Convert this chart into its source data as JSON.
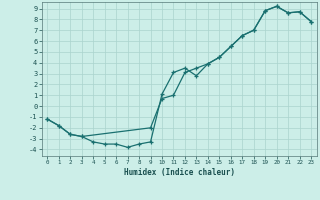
{
  "xlabel": "Humidex (Indice chaleur)",
  "background_color": "#cceee8",
  "grid_color": "#aad4ce",
  "line_color": "#1a7070",
  "xlim": [
    -0.5,
    23.5
  ],
  "ylim": [
    -4.6,
    9.6
  ],
  "xticks": [
    0,
    1,
    2,
    3,
    4,
    5,
    6,
    7,
    8,
    9,
    10,
    11,
    12,
    13,
    14,
    15,
    16,
    17,
    18,
    19,
    20,
    21,
    22,
    23
  ],
  "yticks": [
    -4,
    -3,
    -2,
    -1,
    0,
    1,
    2,
    3,
    4,
    5,
    6,
    7,
    8,
    9
  ],
  "curve1_x": [
    0,
    1,
    2,
    3,
    4,
    5,
    6,
    7,
    8,
    9,
    10,
    11,
    12,
    13,
    14,
    15,
    16,
    17,
    18,
    19,
    20,
    21,
    22,
    23
  ],
  "curve1_y": [
    -1.2,
    -1.8,
    -2.6,
    -2.8,
    -3.3,
    -3.5,
    -3.5,
    -3.8,
    -3.5,
    -3.3,
    1.1,
    3.1,
    3.5,
    2.8,
    3.9,
    4.5,
    5.5,
    6.5,
    7.0,
    8.8,
    9.2,
    8.6,
    8.7,
    7.8
  ],
  "curve2_x": [
    0,
    1,
    2,
    3,
    9,
    10,
    11,
    12,
    13,
    14,
    15,
    16,
    17,
    18,
    19,
    20,
    21,
    22,
    23
  ],
  "curve2_y": [
    -1.2,
    -1.8,
    -2.6,
    -2.8,
    -2.0,
    0.7,
    1.0,
    3.1,
    3.5,
    3.9,
    4.5,
    5.5,
    6.5,
    7.0,
    8.8,
    9.2,
    8.6,
    8.7,
    7.8
  ]
}
